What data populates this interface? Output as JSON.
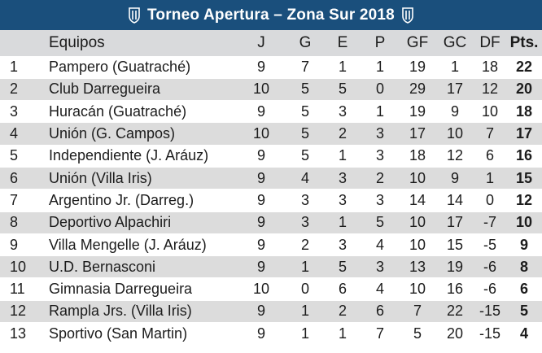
{
  "title": "Torneo Apertura – Zona Sur 2018",
  "headers": {
    "pos": "",
    "team": "Equipos",
    "j": "J",
    "g": "G",
    "e": "E",
    "p": "P",
    "gf": "GF",
    "gc": "GC",
    "df": "DF",
    "pts": "Pts."
  },
  "rows": [
    {
      "pos": "1",
      "team": "Pampero (Guatraché)",
      "j": "9",
      "g": "7",
      "e": "1",
      "p": "1",
      "gf": "19",
      "gc": "1",
      "df": "18",
      "pts": "22"
    },
    {
      "pos": "2",
      "team": "Club Darregueira",
      "j": "10",
      "g": "5",
      "e": "5",
      "p": "0",
      "gf": "29",
      "gc": "17",
      "df": "12",
      "pts": "20"
    },
    {
      "pos": "3",
      "team": "Huracán (Guatraché)",
      "j": "9",
      "g": "5",
      "e": "3",
      "p": "1",
      "gf": "19",
      "gc": "9",
      "df": "10",
      "pts": "18"
    },
    {
      "pos": "4",
      "team": "Unión (G. Campos)",
      "j": "10",
      "g": "5",
      "e": "2",
      "p": "3",
      "gf": "17",
      "gc": "10",
      "df": "7",
      "pts": "17"
    },
    {
      "pos": "5",
      "team": "Independiente (J. Aráuz)",
      "j": "9",
      "g": "5",
      "e": "1",
      "p": "3",
      "gf": "18",
      "gc": "12",
      "df": "6",
      "pts": "16"
    },
    {
      "pos": "6",
      "team": "Unión (Villa Iris)",
      "j": "9",
      "g": "4",
      "e": "3",
      "p": "2",
      "gf": "10",
      "gc": "9",
      "df": "1",
      "pts": "15"
    },
    {
      "pos": "7",
      "team": "Argentino Jr. (Darreg.)",
      "j": "9",
      "g": "3",
      "e": "3",
      "p": "3",
      "gf": "14",
      "gc": "14",
      "df": "0",
      "pts": "12"
    },
    {
      "pos": "8",
      "team": "Deportivo Alpachiri",
      "j": "9",
      "g": "3",
      "e": "1",
      "p": "5",
      "gf": "10",
      "gc": "17",
      "df": "-7",
      "pts": "10"
    },
    {
      "pos": "9",
      "team": "Villa Mengelle (J. Aráuz)",
      "j": "9",
      "g": "2",
      "e": "3",
      "p": "4",
      "gf": "10",
      "gc": "15",
      "df": "-5",
      "pts": "9"
    },
    {
      "pos": "10",
      "team": "U.D. Bernasconi",
      "j": "9",
      "g": "1",
      "e": "5",
      "p": "3",
      "gf": "13",
      "gc": "19",
      "df": "-6",
      "pts": "8"
    },
    {
      "pos": "11",
      "team": "Gimnasia Darregueira",
      "j": "10",
      "g": "0",
      "e": "6",
      "p": "4",
      "gf": "10",
      "gc": "16",
      "df": "-6",
      "pts": "6"
    },
    {
      "pos": "12",
      "team": "Rampla Jrs. (Villa Iris)",
      "j": "9",
      "g": "1",
      "e": "2",
      "p": "6",
      "gf": "7",
      "gc": "22",
      "df": "-15",
      "pts": "5"
    },
    {
      "pos": "13",
      "team": "Sportivo (San Martin)",
      "j": "9",
      "g": "1",
      "e": "1",
      "p": "7",
      "gf": "5",
      "gc": "20",
      "df": "-15",
      "pts": "4"
    }
  ],
  "colors": {
    "title_bg": "#1a4f7c",
    "header_bg": "#d9dadc",
    "stripe_bg": "#dcdcdc"
  },
  "icons": [
    "crest-icon",
    "crest-icon"
  ]
}
